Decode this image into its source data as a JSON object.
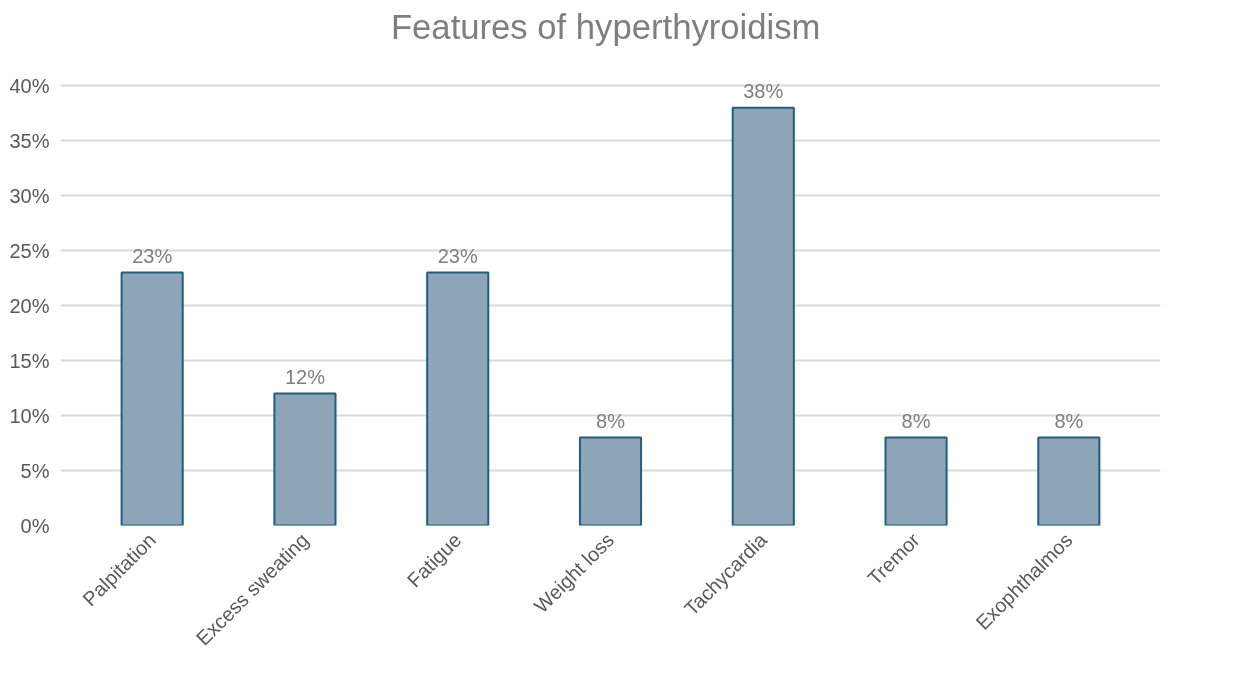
{
  "chart_data": {
    "type": "bar",
    "title": "Features  of hyperthyroidism",
    "categories": [
      "Palpitation",
      "Excess sweating",
      "Fatigue",
      "Weight loss",
      "Tachycardia",
      "Tremor",
      "Exophthalmos"
    ],
    "values": [
      23,
      12,
      23,
      8,
      38,
      8,
      8
    ],
    "value_labels": [
      "23%",
      "12%",
      "23%",
      "8%",
      "38%",
      "8%",
      "8%"
    ],
    "color": "#8ea5b8",
    "ylim": [
      0,
      40
    ],
    "yticks": [
      {
        "value": 0,
        "label": "0%"
      },
      {
        "value": 5,
        "label": "5%"
      },
      {
        "value": 10,
        "label": "10%"
      },
      {
        "value": 15,
        "label": "15%"
      },
      {
        "value": 20,
        "label": "20%"
      },
      {
        "value": 25,
        "label": "25%"
      },
      {
        "value": 30,
        "label": "30%"
      },
      {
        "value": 35,
        "label": "35%"
      },
      {
        "value": 40,
        "label": "40%"
      }
    ],
    "grid": "y"
  }
}
